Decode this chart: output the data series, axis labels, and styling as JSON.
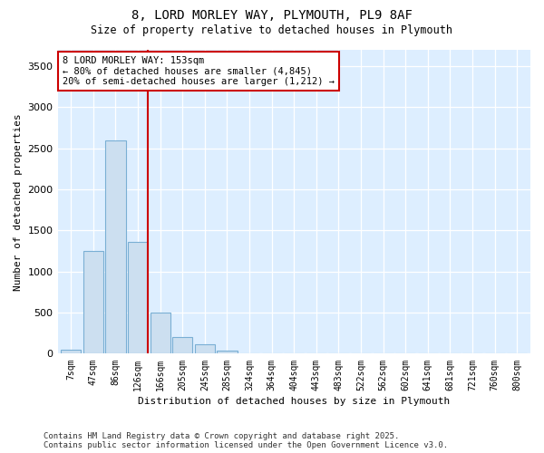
{
  "title1": "8, LORD MORLEY WAY, PLYMOUTH, PL9 8AF",
  "title2": "Size of property relative to detached houses in Plymouth",
  "xlabel": "Distribution of detached houses by size in Plymouth",
  "ylabel": "Number of detached properties",
  "categories": [
    "7sqm",
    "47sqm",
    "86sqm",
    "126sqm",
    "166sqm",
    "205sqm",
    "245sqm",
    "285sqm",
    "324sqm",
    "364sqm",
    "404sqm",
    "443sqm",
    "483sqm",
    "522sqm",
    "562sqm",
    "602sqm",
    "641sqm",
    "681sqm",
    "721sqm",
    "760sqm",
    "800sqm"
  ],
  "bar_values": [
    50,
    1250,
    2600,
    1360,
    500,
    200,
    110,
    40,
    10,
    5,
    0,
    0,
    0,
    0,
    0,
    0,
    0,
    0,
    0,
    0,
    0
  ],
  "bar_color": "#ccdff0",
  "bar_edgecolor": "#7aafd4",
  "vline_color": "#cc0000",
  "vline_x": 4.0,
  "annotation_text": "8 LORD MORLEY WAY: 153sqm\n← 80% of detached houses are smaller (4,845)\n20% of semi-detached houses are larger (1,212) →",
  "annotation_box_facecolor": "#ffffff",
  "annotation_box_edgecolor": "#cc0000",
  "ylim": [
    0,
    3700
  ],
  "yticks": [
    0,
    500,
    1000,
    1500,
    2000,
    2500,
    3000,
    3500
  ],
  "fig_bg_color": "#ffffff",
  "plot_bg_color": "#ddeeff",
  "grid_color": "#ffffff",
  "footer1": "Contains HM Land Registry data © Crown copyright and database right 2025.",
  "footer2": "Contains public sector information licensed under the Open Government Licence v3.0."
}
